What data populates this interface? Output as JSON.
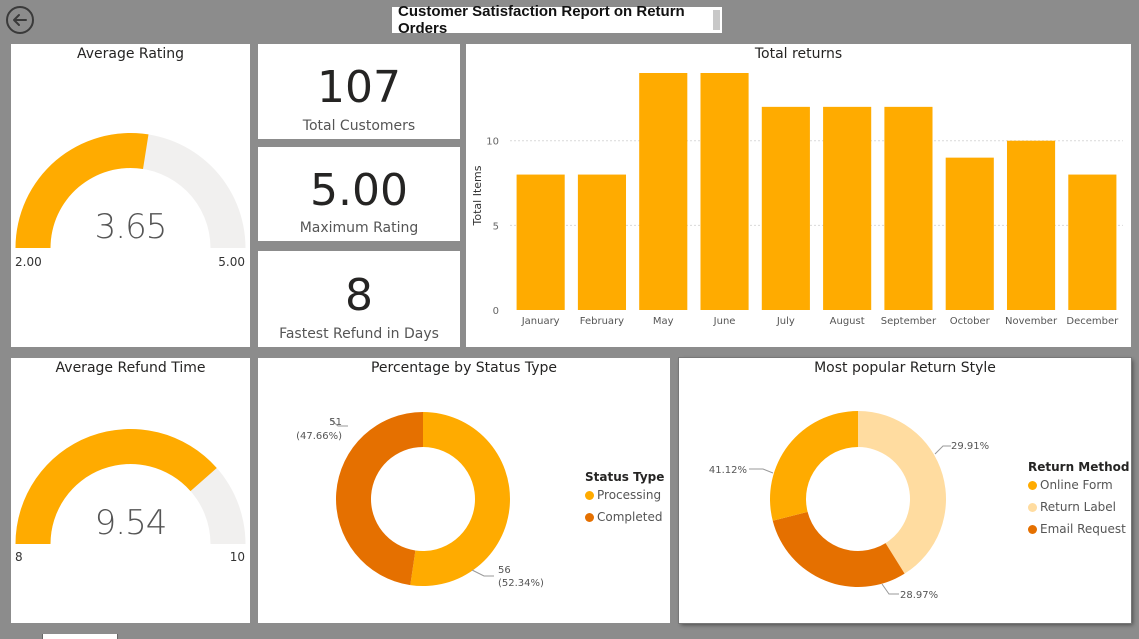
{
  "report": {
    "title": "Customer Satisfaction Report on Return Orders"
  },
  "icons": {
    "back": "back-arrow-icon"
  },
  "colors": {
    "primary": "#FFAB00",
    "dark_orange": "#E57000",
    "light_orange": "#FFDCA0",
    "gauge_track": "#F1F0EF"
  },
  "avg_rating": {
    "title": "Average Rating",
    "value": "3.65",
    "min": "2.00",
    "max": "5.00",
    "value_num": 3.65,
    "min_num": 2,
    "max_num": 5
  },
  "avg_refund": {
    "title": "Average Refund Time",
    "value": "9.54",
    "min": "8",
    "max": "10",
    "value_num": 9.54,
    "min_num": 8,
    "max_num": 10
  },
  "kpis": {
    "total_customers": {
      "value": "107",
      "label": "Total Customers"
    },
    "max_rating": {
      "value": "5.00",
      "label": "Maximum Rating"
    },
    "fastest_refund": {
      "value": "8",
      "label": "Fastest Refund in Days"
    }
  },
  "total_returns": {
    "title": "Total returns"
  },
  "status": {
    "title": "Percentage by Status Type",
    "legend_title": "Status Type",
    "items": [
      {
        "name": "Processing",
        "value": 56,
        "pct": "(52.34%)",
        "count_label": "56"
      },
      {
        "name": "Completed",
        "value": 51,
        "pct": "(47.66%)",
        "count_label": "51"
      }
    ]
  },
  "return_style": {
    "title": "Most popular Return Style",
    "legend_title": "Return Method",
    "items": [
      {
        "name": "Online Form",
        "pct": 41.12,
        "label": "41.12%"
      },
      {
        "name": "Return Label",
        "pct": 29.91,
        "label": "29.91%"
      },
      {
        "name": "Email Request",
        "pct": 28.97,
        "label": "28.97%"
      }
    ]
  },
  "chart_data": [
    {
      "type": "bar",
      "title": "Total returns",
      "xlabel": "",
      "ylabel": "Total Items",
      "categories": [
        "January",
        "February",
        "May",
        "June",
        "July",
        "August",
        "September",
        "October",
        "November",
        "December"
      ],
      "values": [
        8,
        8,
        14,
        14,
        12,
        12,
        12,
        9,
        10,
        8
      ],
      "ylim": [
        0,
        14
      ],
      "yticks": [
        0,
        5,
        10
      ],
      "grid": true,
      "color": "#FFAB00"
    },
    {
      "type": "pie",
      "title": "Percentage by Status Type",
      "categories": [
        "Processing",
        "Completed"
      ],
      "values": [
        56,
        51
      ],
      "percentages": [
        52.34,
        47.66
      ],
      "legend_position": "right"
    },
    {
      "type": "pie",
      "title": "Most popular Return Style",
      "categories": [
        "Online Form",
        "Return Label",
        "Email Request"
      ],
      "values": [
        41.12,
        29.91,
        28.97
      ],
      "legend_position": "right"
    }
  ]
}
